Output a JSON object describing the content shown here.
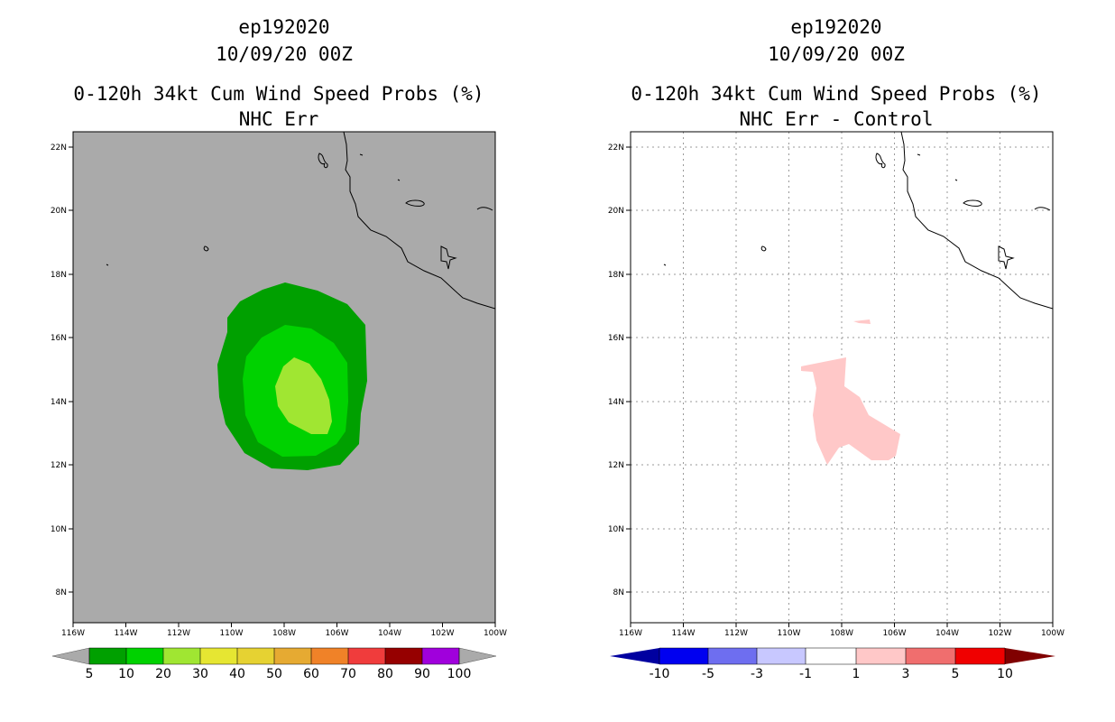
{
  "left_panel": {
    "title_line1": "ep192020",
    "title_line2": "10/09/20 00Z",
    "title_line3": "0-120h 34kt Cum Wind Speed Probs (%)",
    "title_line4": "NHC Err",
    "background_color": "#aaaaaa",
    "contour_levels_pct": [
      5,
      10,
      20
    ],
    "contour_colors": [
      "#00a000",
      "#00d200",
      "#a0e632"
    ]
  },
  "right_panel": {
    "title_line1": "ep192020",
    "title_line2": "10/09/20 00Z",
    "title_line3": "0-120h 34kt Cum Wind Speed Probs (%)",
    "title_line4": "NHC Err - Control",
    "positive_region_color": "#ffc8c8"
  },
  "axes": {
    "lon_labels": [
      "116W",
      "114W",
      "112W",
      "110W",
      "108W",
      "106W",
      "104W",
      "102W",
      "100W"
    ],
    "lat_labels": [
      "8N",
      "10N",
      "12N",
      "14N",
      "16N",
      "18N",
      "20N",
      "22N"
    ]
  },
  "left_colorbar": {
    "labels": [
      "5",
      "10",
      "20",
      "30",
      "40",
      "50",
      "60",
      "70",
      "80",
      "90",
      "100"
    ],
    "colors": [
      "#00a000",
      "#00d200",
      "#a0e632",
      "#e6e632",
      "#e6d232",
      "#e6aa32",
      "#f08228",
      "#f03c3c",
      "#960000",
      "#a000dc"
    ],
    "under_color": "#aaaaaa",
    "over_color": "#aaaaaa"
  },
  "right_colorbar": {
    "labels": [
      "-10",
      "-5",
      "-3",
      "-1",
      "1",
      "3",
      "5",
      "10"
    ],
    "colors": [
      "#0000f0",
      "#6e6ef0",
      "#c8c8ff",
      "#ffffff",
      "#ffc8c8",
      "#f06e6e",
      "#f00000"
    ],
    "under_color": "#0000a0",
    "over_color": "#800000"
  }
}
